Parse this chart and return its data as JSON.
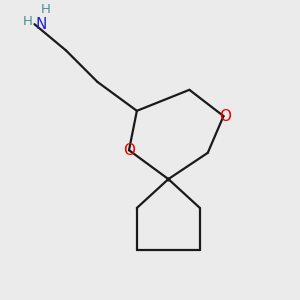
{
  "background_color": "#ebebeb",
  "bond_color": "#1a1a1a",
  "O_color": "#ee0000",
  "N_color": "#2222cc",
  "H_color": "#4a9090",
  "line_width": 1.6,
  "figsize": [
    3.0,
    3.0
  ],
  "dpi": 100,
  "xlim": [
    0.5,
    6.0
  ],
  "ylim": [
    0.3,
    5.8
  ]
}
